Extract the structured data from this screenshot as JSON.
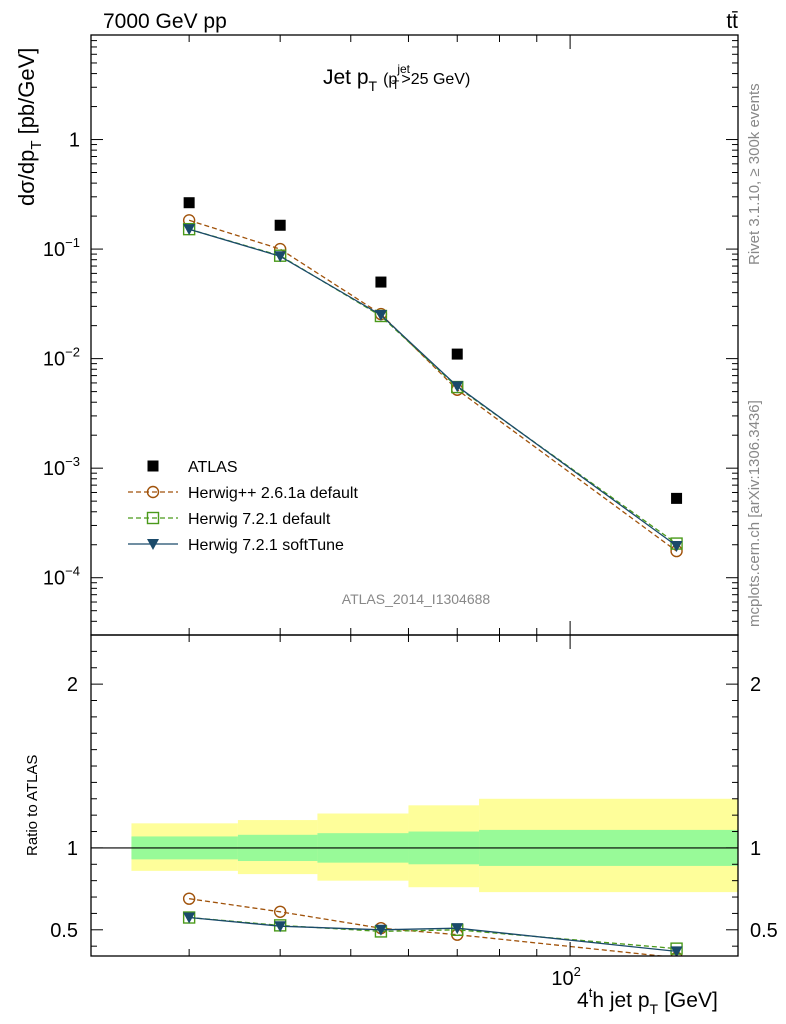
{
  "header": {
    "process": "7000 GeV pp",
    "final_state": "tt̄"
  },
  "side_labels": {
    "rivet": "Rivet 3.1.10, ≥ 300k events",
    "site": "mcplots.cern.ch [arXiv:1306.3436]"
  },
  "analysis_id": "ATLAS_2014_I1304688",
  "chart_data": [
    {
      "type": "line",
      "title_main": "Jet p",
      "title_sub_T": "T",
      "title_cut_open": "(p",
      "title_cut_sup": "jet",
      "title_cut_sub": "T",
      "title_cut_close": ">25 GeV)",
      "ylabel_main": "dσ/dp",
      "ylabel_sub": "T",
      "ylabel_unit": "[pb/GeV]",
      "xlabel_pre": "4",
      "xlabel_sup": "t",
      "xlabel_mid": "h jet p",
      "xlabel_sub": "T",
      "xlabel_unit": "[GeV]",
      "xscale": "log",
      "yscale": "log",
      "xlim": [
        22,
        170
      ],
      "ylim": [
        3e-05,
        9
      ],
      "x_ticks": [
        {
          "value": 100,
          "label": "10",
          "sup": "2"
        }
      ],
      "y_ticks": [
        {
          "value": 1,
          "label": "1",
          "sup": ""
        },
        {
          "value": 0.1,
          "label": "10",
          "sup": "−1"
        },
        {
          "value": 0.01,
          "label": "10",
          "sup": "−2"
        },
        {
          "value": 0.001,
          "label": "10",
          "sup": "−3"
        },
        {
          "value": 0.0001,
          "label": "10",
          "sup": "−4"
        }
      ],
      "legend_position": "bottom-left",
      "series": [
        {
          "name": "ATLAS",
          "marker": "square-filled",
          "line": "none",
          "color": "#000000",
          "x": [
            30,
            40,
            55,
            70,
            140
          ],
          "values": [
            0.265,
            0.165,
            0.05,
            0.011,
            0.00053
          ]
        },
        {
          "name": "Herwig++ 2.6.1a default",
          "marker": "circle-open",
          "line": "dashed",
          "color": "#a0520a",
          "x": [
            30,
            40,
            55,
            70,
            140
          ],
          "values": [
            0.183,
            0.1,
            0.0255,
            0.0052,
            0.000175
          ]
        },
        {
          "name": "Herwig 7.2.1 default",
          "marker": "square-open",
          "line": "dashed",
          "color": "#4a9a1a",
          "x": [
            30,
            40,
            55,
            70,
            140
          ],
          "values": [
            0.152,
            0.087,
            0.0245,
            0.0055,
            0.000205
          ]
        },
        {
          "name": "Herwig 7.2.1 softTune",
          "marker": "triangle-down-filled",
          "line": "solid",
          "color": "#1a4a6a",
          "x": [
            30,
            40,
            55,
            70,
            140
          ],
          "values": [
            0.152,
            0.086,
            0.025,
            0.0056,
            0.000195
          ]
        }
      ]
    },
    {
      "type": "line",
      "ylabel": "Ratio to ATLAS",
      "xscale": "log",
      "ylim": [
        0.34,
        2.3
      ],
      "y_ticks": [
        {
          "value": 0.5,
          "label": "0.5"
        },
        {
          "value": 1,
          "label": "1"
        },
        {
          "value": 2,
          "label": "2"
        }
      ],
      "bands": {
        "edges": [
          25,
          35,
          45,
          60,
          75,
          170
        ],
        "stat": [
          [
            0.93,
            1.07
          ],
          [
            0.92,
            1.08
          ],
          [
            0.91,
            1.09
          ],
          [
            0.9,
            1.1
          ],
          [
            0.89,
            1.11
          ]
        ],
        "total": [
          [
            0.86,
            1.15
          ],
          [
            0.84,
            1.17
          ],
          [
            0.8,
            1.21
          ],
          [
            0.76,
            1.26
          ],
          [
            0.73,
            1.3
          ]
        ],
        "stat_color": "#98fa98",
        "total_color": "#fefe9a"
      },
      "series": [
        {
          "name": "Herwig++ 2.6.1a default",
          "x": [
            30,
            40,
            55,
            70,
            140
          ],
          "values": [
            0.69,
            0.61,
            0.51,
            0.47,
            0.33
          ]
        },
        {
          "name": "Herwig 7.2.1 default",
          "x": [
            30,
            40,
            55,
            70,
            140
          ],
          "values": [
            0.575,
            0.527,
            0.49,
            0.5,
            0.385
          ]
        },
        {
          "name": "Herwig 7.2.1 softTune",
          "x": [
            30,
            40,
            55,
            70,
            140
          ],
          "values": [
            0.575,
            0.522,
            0.5,
            0.51,
            0.368
          ]
        }
      ]
    }
  ]
}
